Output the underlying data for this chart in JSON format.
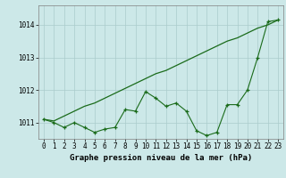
{
  "title": "Graphe pression niveau de la mer (hPa)",
  "bg_color": "#cce8e8",
  "line_color": "#1a6b1a",
  "grid_color": "#aacccc",
  "x_labels": [
    "0",
    "1",
    "2",
    "3",
    "4",
    "5",
    "6",
    "7",
    "8",
    "9",
    "10",
    "11",
    "12",
    "13",
    "14",
    "15",
    "16",
    "17",
    "18",
    "19",
    "20",
    "21",
    "22",
    "23"
  ],
  "smooth_line": [
    1011.1,
    1011.05,
    1011.2,
    1011.35,
    1011.5,
    1011.6,
    1011.75,
    1011.9,
    1012.05,
    1012.2,
    1012.35,
    1012.5,
    1012.6,
    1012.75,
    1012.9,
    1013.05,
    1013.2,
    1013.35,
    1013.5,
    1013.6,
    1013.75,
    1013.9,
    1014.0,
    1014.15
  ],
  "jagged_line": [
    1011.1,
    1011.0,
    1010.85,
    1011.0,
    1010.85,
    1010.7,
    1010.8,
    1010.85,
    1011.4,
    1011.35,
    1011.95,
    1011.75,
    1011.5,
    1011.6,
    1011.35,
    1010.75,
    1010.6,
    1010.7,
    1011.55,
    1011.55,
    1012.0,
    1013.0,
    1014.1,
    1014.15
  ],
  "ylim": [
    1010.5,
    1014.6
  ],
  "yticks": [
    1011,
    1012,
    1013,
    1014
  ],
  "xlim": [
    -0.5,
    23.5
  ],
  "tick_fontsize": 5.5,
  "label_fontsize": 6.5
}
